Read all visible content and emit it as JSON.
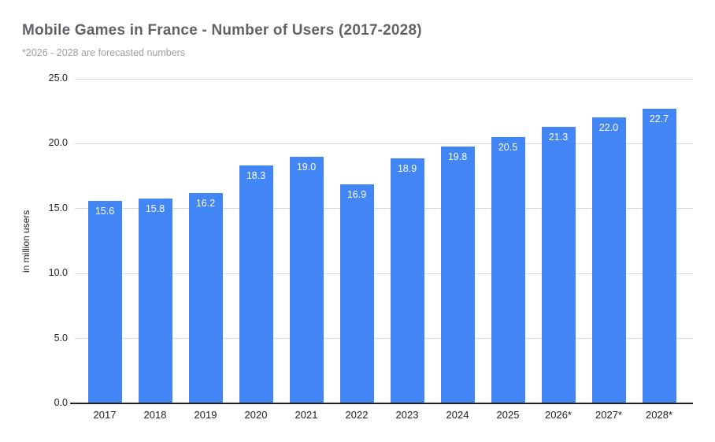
{
  "chart_data": {
    "type": "bar",
    "title": "Mobile Games in France - Number of Users (2017-2028)",
    "subtitle": "*2026 - 2028 are forecasted numbers",
    "ylabel": "in million users",
    "xlabel": "",
    "categories": [
      "2017",
      "2018",
      "2019",
      "2020",
      "2021",
      "2022",
      "2023",
      "2024",
      "2025",
      "2026*",
      "2027*",
      "2028*"
    ],
    "values": [
      15.6,
      15.8,
      16.2,
      18.3,
      19.0,
      16.9,
      18.9,
      19.8,
      20.5,
      21.3,
      22.0,
      22.7
    ],
    "value_label_format": "one_decimal",
    "ylim": [
      0,
      25
    ],
    "yticks": [
      0.0,
      5.0,
      10.0,
      15.0,
      20.0,
      25.0
    ],
    "ytick_labels": [
      "0.0",
      "5.0",
      "10.0",
      "15.0",
      "20.0",
      "25.0"
    ],
    "grid": true,
    "legend": "none",
    "colors": {
      "bar": "#4285f4",
      "bar_value_label": "#ffffff",
      "gridline": "#d9d9d9",
      "axis_baseline": "#212121",
      "tick_label": "#202124",
      "title": "#5f6368",
      "subtitle": "#9e9e9e",
      "background": "#ffffff"
    }
  }
}
